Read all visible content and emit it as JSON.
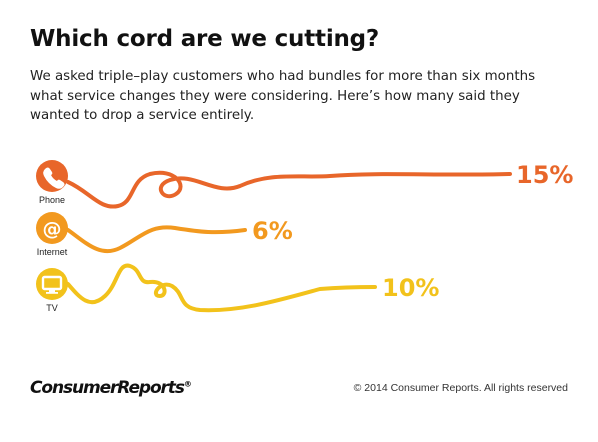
{
  "title": "Which cord are we cutting?",
  "subtitle": "We asked triple–play customers who had bundles for more than six months what service changes they were considering. Here’s how many said they wanted to drop a service entirely.",
  "chart_data": {
    "type": "bar",
    "categories": [
      "Phone",
      "Internet",
      "TV"
    ],
    "values": [
      15,
      6,
      10
    ],
    "value_labels": [
      "15%",
      "6%",
      "10%"
    ],
    "unit": "%",
    "colors": [
      "#e8662a",
      "#f2991f",
      "#f2c21b"
    ],
    "icons": [
      "phone-icon",
      "at-sign-icon",
      "tv-icon"
    ]
  },
  "footer": {
    "brand": "ConsumerReports",
    "trademark": "®",
    "copyright": "© 2014 Consumer Reports. All rights reserved"
  }
}
